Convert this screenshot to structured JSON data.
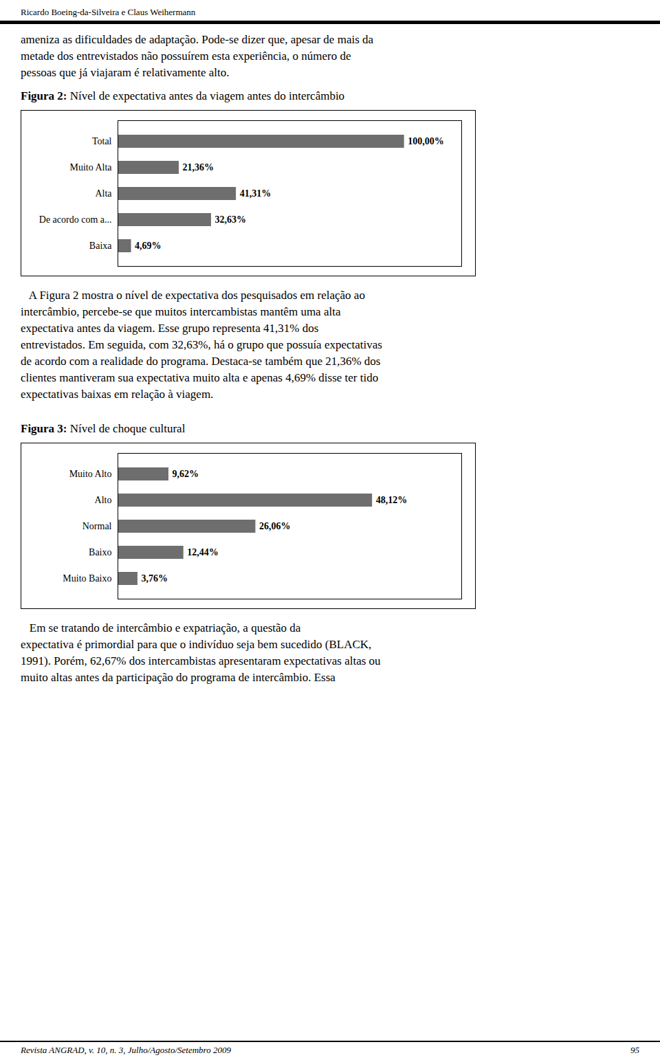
{
  "header_text": "Ricardo Boeing-da-Silveira e Claus Weihermann",
  "intro_lines": [
    "ameniza as dificuldades de adaptação. Pode-se dizer que, apesar de mais da",
    "metade dos entrevistados não possuírem esta experiência, o número de",
    "pessoas que já viajaram é relativamente alto."
  ],
  "body_lines": [
    "   A Figura 2 mostra o nível de expectativa dos pesquisados em relação ao",
    "intercâmbio, percebe-se que muitos intercambistas mantêm uma alta",
    "expectativa antes da viagem. Esse grupo representa 41,31% dos",
    "entrevistados. Em seguida, com 32,63%, há o grupo que possuía expectativas",
    "de acordo com a realidade do programa. Destaca-se também que 21,36% dos",
    "clientes mantiveram sua expectativa muito alta e apenas 4,69% disse ter tido",
    "expectativas baixas em relação à viagem."
  ],
  "closing_lines": [
    "   Em se tratando de intercâmbio e expatriação, a questão da",
    "expectativa é primordial para que o indivíduo seja bem sucedido (BLACK,",
    "1991). Porém, 62,67% dos intercambistas apresentaram expectativas altas ou",
    "muito altas antes da participação do programa de intercâmbio. Essa"
  ],
  "footer_text": "Revista ANGRAD, v. 10, n. 3, Julho/Agosto/Setembro 2009",
  "footer_page": "95",
  "chart_data": [
    {
      "type": "bar",
      "orientation": "horizontal",
      "title": "Figura 2: Nível de expectativa antes da viagem antes do intercâmbio",
      "categories": [
        "Total",
        "Muito Alta",
        "Alta",
        "De acordo com a...",
        "Baixa"
      ],
      "values": [
        100.0,
        21.36,
        41.31,
        32.63,
        4.69
      ],
      "value_labels": [
        "100,00%",
        "21,36%",
        "41,31%",
        "32,63%",
        "4,69%"
      ],
      "color": "#6e6e6e",
      "xlim": [
        0,
        120
      ],
      "data_labels": true,
      "tick_labels": "y",
      "grid": false
    },
    {
      "type": "bar",
      "orientation": "horizontal",
      "title": "Figura 3: Nível de choque cultural",
      "categories": [
        "Muito Alto",
        "Alto",
        "Normal",
        "Baixo",
        "Muito Baixo"
      ],
      "values": [
        9.62,
        48.12,
        26.06,
        12.44,
        3.76
      ],
      "value_labels": [
        "9,62%",
        "48,12%",
        "26,06%",
        "12,44%",
        "3,76%"
      ],
      "color": "#6e6e6e",
      "xlim": [
        0,
        65
      ],
      "data_labels": true,
      "tick_labels": "y",
      "grid": false
    }
  ]
}
